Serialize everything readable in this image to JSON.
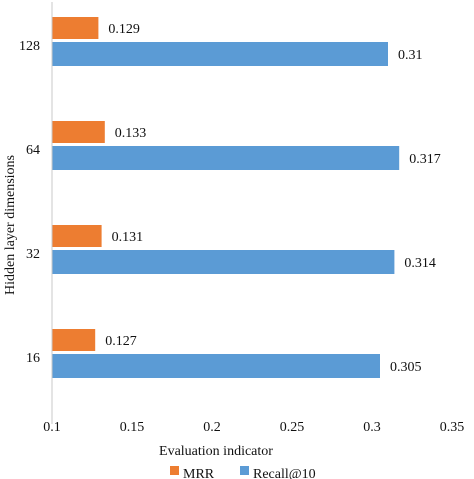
{
  "chart_data": {
    "type": "bar",
    "orientation": "horizontal",
    "categories": [
      "128",
      "64",
      "32",
      "16"
    ],
    "series": [
      {
        "name": "MRR",
        "color": "#ED7D31",
        "values": [
          0.129,
          0.133,
          0.131,
          0.127
        ]
      },
      {
        "name": "Recall@10",
        "color": "#5B9BD5",
        "values": [
          0.31,
          0.317,
          0.314,
          0.305
        ]
      }
    ],
    "value_labels": {
      "MRR": [
        "0.129",
        "0.133",
        "0.131",
        "0.127"
      ],
      "Recall@10": [
        "0.31",
        "0.317",
        "0.314",
        "0.305"
      ]
    },
    "xlabel": "Evaluation indicator",
    "ylabel": "Hidden layer dimensions",
    "xlim": [
      0.1,
      0.35
    ],
    "xticks": [
      0.1,
      0.15,
      0.2,
      0.25,
      0.3,
      0.35
    ],
    "xtick_labels": [
      "0.1",
      "0.15",
      "0.2",
      "0.25",
      "0.3",
      "0.35"
    ],
    "grid": false,
    "legend_position": "bottom"
  }
}
